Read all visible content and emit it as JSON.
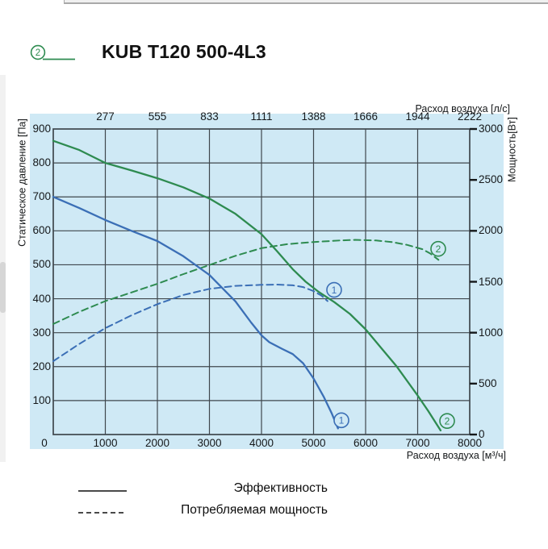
{
  "header": {
    "variant_marker": "2",
    "title": "KUB T120 500-4L3"
  },
  "chart_data": {
    "type": "line",
    "title": "KUB T120 500-4L3",
    "background_color": "#cfe9f5",
    "grid_color": "#3f474d",
    "tick_color": "#15181a",
    "axes": {
      "top": {
        "label": "Расход воздуха [л/с]",
        "ticks": [
          "277",
          "555",
          "833",
          "1111",
          "1388",
          "1666",
          "1944",
          "2222"
        ]
      },
      "bottom": {
        "label": "Расход воздуха [м³/ч]",
        "range": [
          0,
          8000
        ],
        "ticks": [
          0,
          1000,
          2000,
          3000,
          4000,
          5000,
          6000,
          7000,
          8000
        ]
      },
      "left": {
        "label": "Статическое давление [Па]",
        "range": [
          0,
          900
        ],
        "ticks": [
          900,
          800,
          700,
          600,
          500,
          400,
          300,
          200,
          100
        ]
      },
      "right": {
        "label": "Мощность[Вт]",
        "range": [
          0,
          3000
        ],
        "ticks": [
          3000,
          2500,
          2000,
          1500,
          1000,
          500,
          0
        ]
      }
    },
    "legend": [
      {
        "style": "solid",
        "label": "Эффективность"
      },
      {
        "style": "dashed",
        "label": "Потребляемая мощность"
      }
    ],
    "series": [
      {
        "id": "curve-1-pressure",
        "curve": "1",
        "axis": "left",
        "line": "solid",
        "color": "#3b6fb6",
        "marker": {
          "label": "1",
          "at": [
            5535,
            42
          ]
        },
        "points": [
          [
            0,
            700
          ],
          [
            500,
            667
          ],
          [
            1000,
            632
          ],
          [
            1500,
            600
          ],
          [
            2000,
            570
          ],
          [
            2500,
            525
          ],
          [
            3000,
            470
          ],
          [
            3500,
            392
          ],
          [
            3800,
            330
          ],
          [
            4000,
            292
          ],
          [
            4150,
            272
          ],
          [
            4400,
            252
          ],
          [
            4600,
            237
          ],
          [
            4800,
            210
          ],
          [
            5000,
            165
          ],
          [
            5200,
            110
          ],
          [
            5350,
            62
          ],
          [
            5470,
            18
          ]
        ]
      },
      {
        "id": "curve-2-pressure",
        "curve": "2",
        "axis": "left",
        "line": "solid",
        "color": "#2e8b50",
        "marker": {
          "label": "2",
          "at": [
            7566,
            40
          ]
        },
        "points": [
          [
            0,
            865
          ],
          [
            500,
            838
          ],
          [
            1000,
            800
          ],
          [
            1500,
            778
          ],
          [
            2000,
            755
          ],
          [
            2500,
            728
          ],
          [
            3000,
            695
          ],
          [
            3500,
            650
          ],
          [
            4000,
            590
          ],
          [
            4300,
            540
          ],
          [
            4600,
            487
          ],
          [
            4850,
            450
          ],
          [
            5100,
            420
          ],
          [
            5400,
            390
          ],
          [
            5700,
            355
          ],
          [
            6000,
            310
          ],
          [
            6300,
            255
          ],
          [
            6600,
            200
          ],
          [
            7000,
            115
          ],
          [
            7200,
            70
          ],
          [
            7440,
            12
          ]
        ]
      },
      {
        "id": "curve-1-power",
        "curve": "1",
        "axis": "right",
        "line": "dashed",
        "color": "#3b6fb6",
        "marker": {
          "label": "1",
          "at": [
            5395,
            1420
          ]
        },
        "points": [
          [
            0,
            720
          ],
          [
            500,
            890
          ],
          [
            1000,
            1045
          ],
          [
            1500,
            1170
          ],
          [
            2000,
            1280
          ],
          [
            2500,
            1370
          ],
          [
            3000,
            1430
          ],
          [
            3500,
            1460
          ],
          [
            4000,
            1470
          ],
          [
            4300,
            1472
          ],
          [
            4600,
            1465
          ],
          [
            4800,
            1448
          ],
          [
            5000,
            1408
          ],
          [
            5150,
            1365
          ],
          [
            5270,
            1310
          ]
        ]
      },
      {
        "id": "curve-2-power",
        "curve": "2",
        "axis": "right",
        "line": "dashed",
        "color": "#2e8b50",
        "marker": {
          "label": "2",
          "at": [
            7395,
            1823
          ]
        },
        "points": [
          [
            0,
            1085
          ],
          [
            500,
            1205
          ],
          [
            1000,
            1310
          ],
          [
            1500,
            1395
          ],
          [
            2000,
            1480
          ],
          [
            2500,
            1575
          ],
          [
            3000,
            1665
          ],
          [
            3500,
            1755
          ],
          [
            4000,
            1830
          ],
          [
            4500,
            1870
          ],
          [
            5000,
            1890
          ],
          [
            5500,
            1905
          ],
          [
            5800,
            1912
          ],
          [
            6200,
            1905
          ],
          [
            6500,
            1890
          ],
          [
            6800,
            1862
          ],
          [
            7100,
            1818
          ],
          [
            7250,
            1775
          ],
          [
            7400,
            1715
          ]
        ]
      }
    ]
  }
}
